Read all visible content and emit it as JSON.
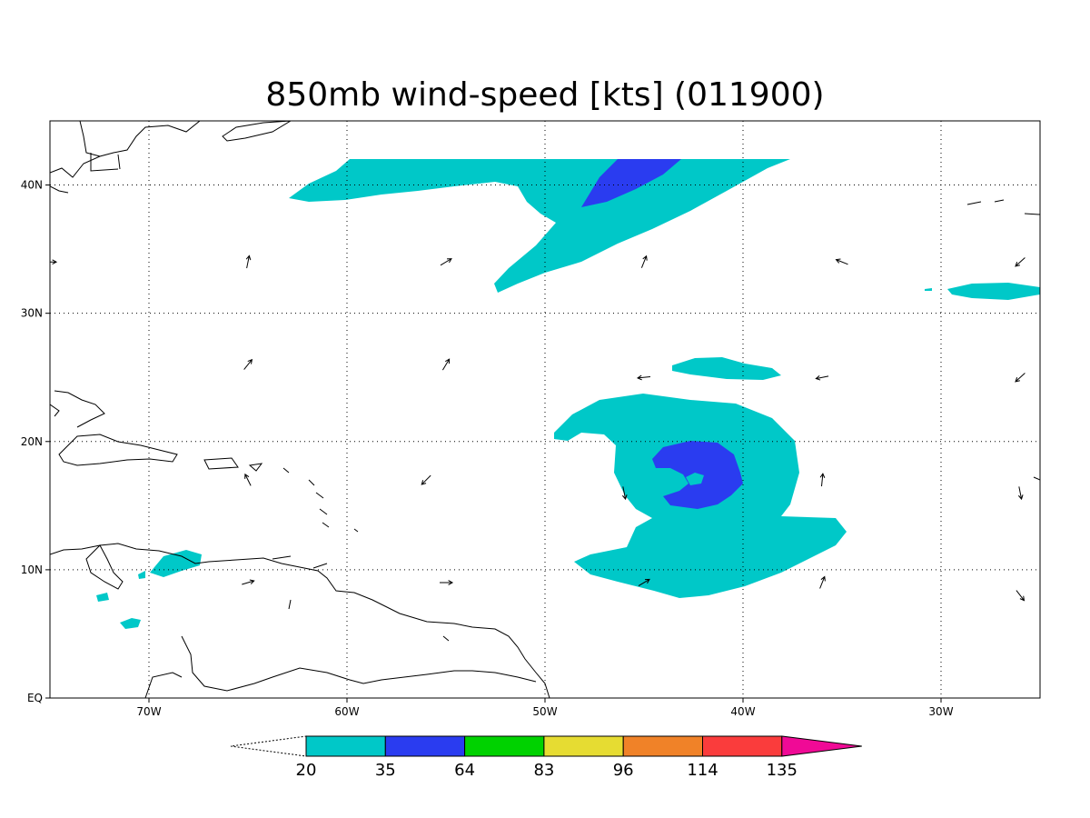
{
  "title": "850mb wind-speed [kts] (011900)",
  "map": {
    "lon_range": [
      -75,
      -25
    ],
    "lat_range": [
      0,
      45
    ],
    "lon_ticks": [
      {
        "value": -70,
        "label": "70W"
      },
      {
        "value": -60,
        "label": "60W"
      },
      {
        "value": -50,
        "label": "50W"
      },
      {
        "value": -40,
        "label": "40W"
      },
      {
        "value": -30,
        "label": "30W"
      }
    ],
    "lat_ticks": [
      {
        "value": 0,
        "label": "EQ"
      },
      {
        "value": 10,
        "label": "10N"
      },
      {
        "value": 20,
        "label": "20N"
      },
      {
        "value": 30,
        "label": "30N"
      },
      {
        "value": 40,
        "label": "40N"
      }
    ],
    "grid": true,
    "wind_vectors": [
      {
        "lon": -75,
        "lat": 34,
        "dx": 1,
        "dy": 0
      },
      {
        "lon": -65,
        "lat": 34,
        "dx": 0.2,
        "dy": 1
      },
      {
        "lon": -55,
        "lat": 34,
        "dx": 1,
        "dy": 0.6
      },
      {
        "lon": -45,
        "lat": 34,
        "dx": 0.4,
        "dy": 1
      },
      {
        "lon": -35,
        "lat": 34,
        "dx": -1,
        "dy": 0.4
      },
      {
        "lon": -26,
        "lat": 34,
        "dx": -1,
        "dy": -0.9
      },
      {
        "lon": -65,
        "lat": 26,
        "dx": 0.8,
        "dy": 1
      },
      {
        "lon": -55,
        "lat": 26,
        "dx": 0.6,
        "dy": 1
      },
      {
        "lon": -45,
        "lat": 25,
        "dx": -1,
        "dy": -0.1
      },
      {
        "lon": -36,
        "lat": 25,
        "dx": -1,
        "dy": -0.2
      },
      {
        "lon": -26,
        "lat": 25,
        "dx": -1,
        "dy": -0.9
      },
      {
        "lon": -65,
        "lat": 17,
        "dx": -0.5,
        "dy": 1
      },
      {
        "lon": -56,
        "lat": 17,
        "dx": -0.8,
        "dy": -0.8
      },
      {
        "lon": -46,
        "lat": 16,
        "dx": 0.2,
        "dy": -1
      },
      {
        "lon": -36,
        "lat": 17,
        "dx": 0.1,
        "dy": 1
      },
      {
        "lon": -26,
        "lat": 16,
        "dx": 0.2,
        "dy": -1
      },
      {
        "lon": -65,
        "lat": 9,
        "dx": 1,
        "dy": 0.3
      },
      {
        "lon": -55,
        "lat": 9,
        "dx": 1,
        "dy": 0
      },
      {
        "lon": -45,
        "lat": 9,
        "dx": 1,
        "dy": 0.6
      },
      {
        "lon": -36,
        "lat": 9,
        "dx": 0.4,
        "dy": 1
      },
      {
        "lon": -26,
        "lat": 8,
        "dx": 0.7,
        "dy": -0.9
      }
    ]
  },
  "colorbar": {
    "labels": [
      "20",
      "35",
      "64",
      "83",
      "96",
      "114",
      "135"
    ],
    "colors": [
      "#00c8c8",
      "#2a3cf0",
      "#00d200",
      "#e6dc32",
      "#f08228",
      "#fa3c3c",
      "#f00a96"
    ]
  }
}
